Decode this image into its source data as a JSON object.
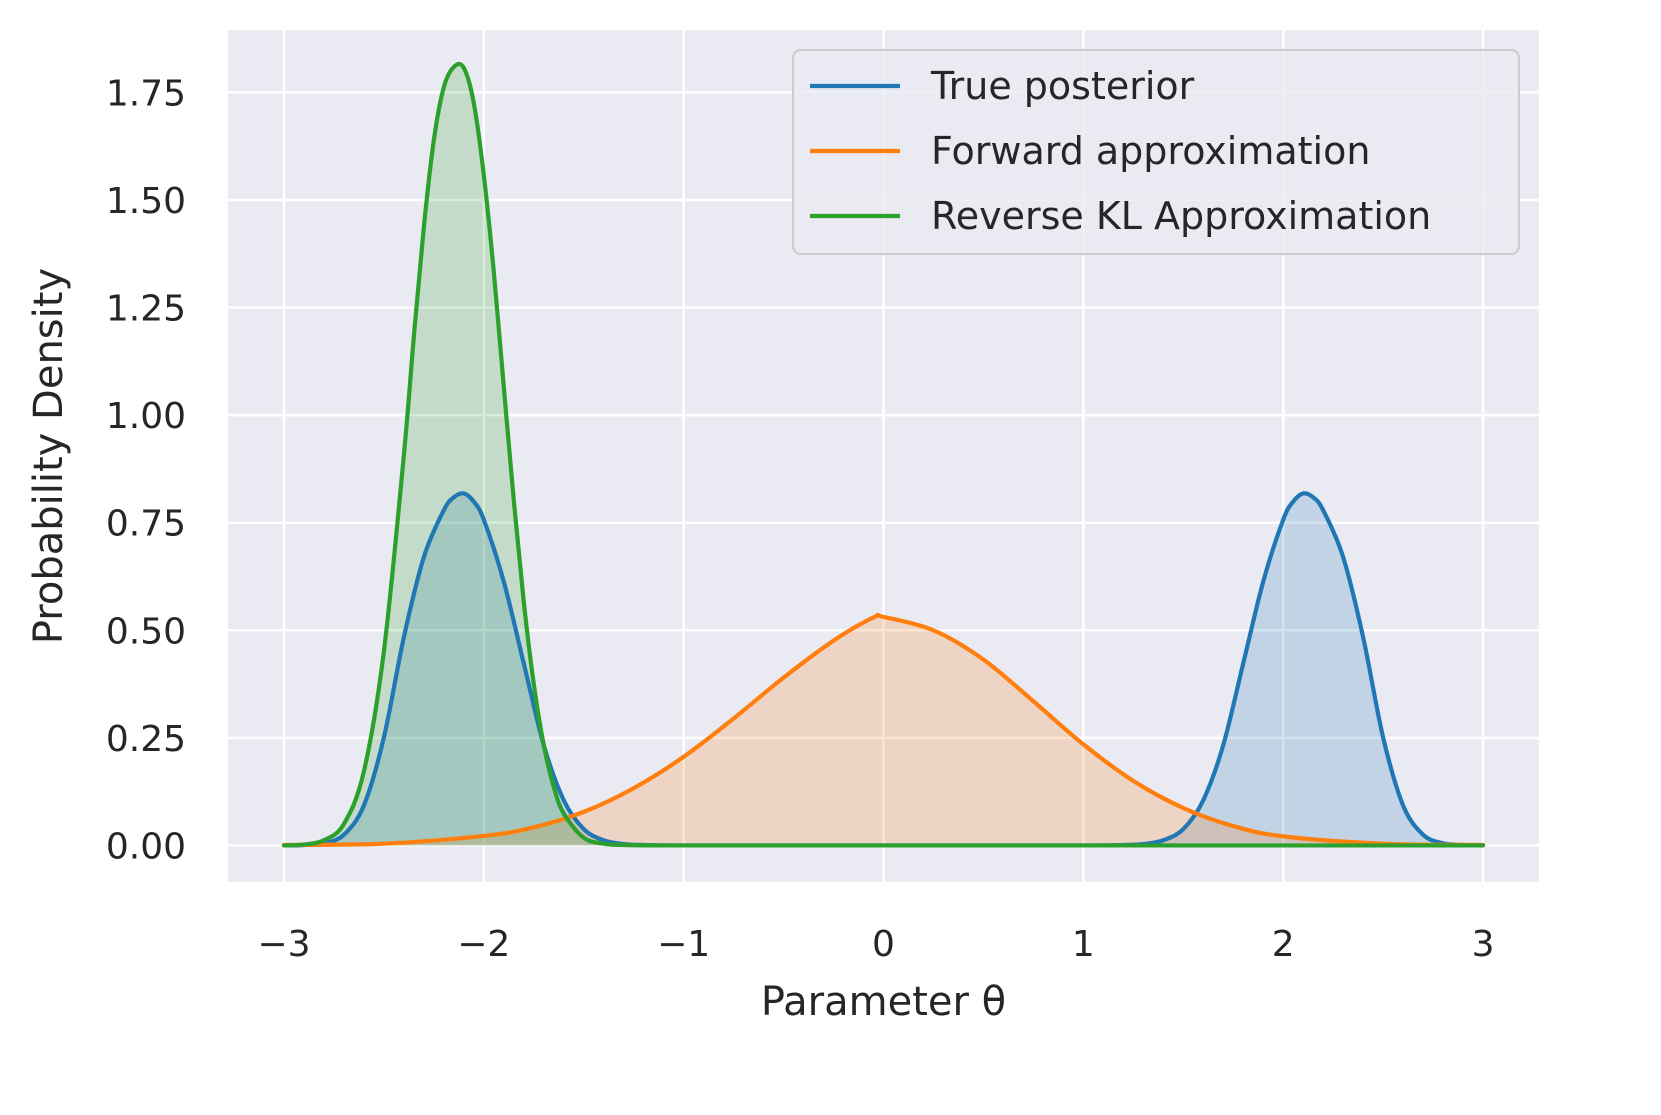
{
  "chart_data": {
    "type": "area",
    "title": "",
    "xlabel": "Parameter θ",
    "ylabel": "Probability Density",
    "xlim": [
      -3.28,
      3.28
    ],
    "ylim": [
      -0.085,
      1.895
    ],
    "x_ticks": [
      -3,
      -2,
      -1,
      0,
      1,
      2,
      3
    ],
    "x_tick_labels": [
      "−3",
      "−2",
      "−1",
      "0",
      "1",
      "2",
      "3"
    ],
    "y_ticks": [
      0.0,
      0.25,
      0.5,
      0.75,
      1.0,
      1.25,
      1.5,
      1.75
    ],
    "y_tick_labels": [
      "0.00",
      "0.25",
      "0.50",
      "0.75",
      "1.00",
      "1.25",
      "1.50",
      "1.75"
    ],
    "grid": true,
    "legend_position": "top-right",
    "background": "#eaeaf2",
    "series": [
      {
        "name": "True posterior",
        "color": "#1f77b4",
        "x": [
          -3.0,
          -2.9,
          -2.8,
          -2.7,
          -2.6,
          -2.5,
          -2.4,
          -2.3,
          -2.2,
          -2.15,
          -2.1,
          -2.05,
          -2.0,
          -1.9,
          -1.8,
          -1.7,
          -1.6,
          -1.5,
          -1.4,
          -1.3,
          -1.2,
          -1.0,
          -0.5,
          0.0,
          0.5,
          1.0,
          1.2,
          1.3,
          1.4,
          1.5,
          1.6,
          1.7,
          1.8,
          1.9,
          2.0,
          2.05,
          2.1,
          2.15,
          2.2,
          2.3,
          2.4,
          2.5,
          2.6,
          2.7,
          2.8,
          2.9,
          3.0
        ],
        "values": [
          0.0,
          0.001,
          0.005,
          0.025,
          0.093,
          0.251,
          0.484,
          0.67,
          0.779,
          0.809,
          0.818,
          0.799,
          0.757,
          0.613,
          0.423,
          0.233,
          0.105,
          0.038,
          0.012,
          0.003,
          0.001,
          0.0,
          0.0,
          0.0,
          0.0,
          0.0,
          0.001,
          0.003,
          0.012,
          0.038,
          0.105,
          0.233,
          0.423,
          0.613,
          0.757,
          0.799,
          0.818,
          0.809,
          0.779,
          0.67,
          0.484,
          0.251,
          0.093,
          0.025,
          0.005,
          0.001,
          0.0
        ]
      },
      {
        "name": "Forward approximation",
        "color": "#ff7f0e",
        "x": [
          -3.0,
          -2.5,
          -2.0,
          -1.75,
          -1.5,
          -1.25,
          -1.0,
          -0.75,
          -0.5,
          -0.25,
          -0.05,
          0.0,
          0.25,
          0.5,
          0.75,
          1.0,
          1.25,
          1.5,
          1.75,
          2.0,
          2.5,
          3.0
        ],
        "values": [
          0.001,
          0.004,
          0.022,
          0.042,
          0.078,
          0.133,
          0.206,
          0.295,
          0.39,
          0.476,
          0.53,
          0.531,
          0.5,
          0.432,
          0.335,
          0.235,
          0.15,
          0.087,
          0.045,
          0.021,
          0.004,
          0.001
        ]
      },
      {
        "name": "Reverse KL Approximation",
        "color": "#2ca02c",
        "x": [
          -3.0,
          -2.9,
          -2.8,
          -2.7,
          -2.6,
          -2.5,
          -2.4,
          -2.35,
          -2.3,
          -2.25,
          -2.2,
          -2.15,
          -2.1,
          -2.05,
          -2.0,
          -1.95,
          -1.9,
          -1.85,
          -1.8,
          -1.75,
          -1.7,
          -1.65,
          -1.6,
          -1.5,
          -1.4,
          -1.3,
          -1.0,
          0.0,
          1.0,
          2.0,
          3.0
        ],
        "values": [
          0.0,
          0.002,
          0.012,
          0.05,
          0.172,
          0.451,
          0.907,
          1.183,
          1.437,
          1.639,
          1.762,
          1.809,
          1.807,
          1.725,
          1.558,
          1.333,
          1.066,
          0.802,
          0.566,
          0.375,
          0.233,
          0.136,
          0.074,
          0.018,
          0.004,
          0.001,
          0.0,
          0.0,
          0.0,
          0.0,
          0.0
        ]
      }
    ]
  }
}
